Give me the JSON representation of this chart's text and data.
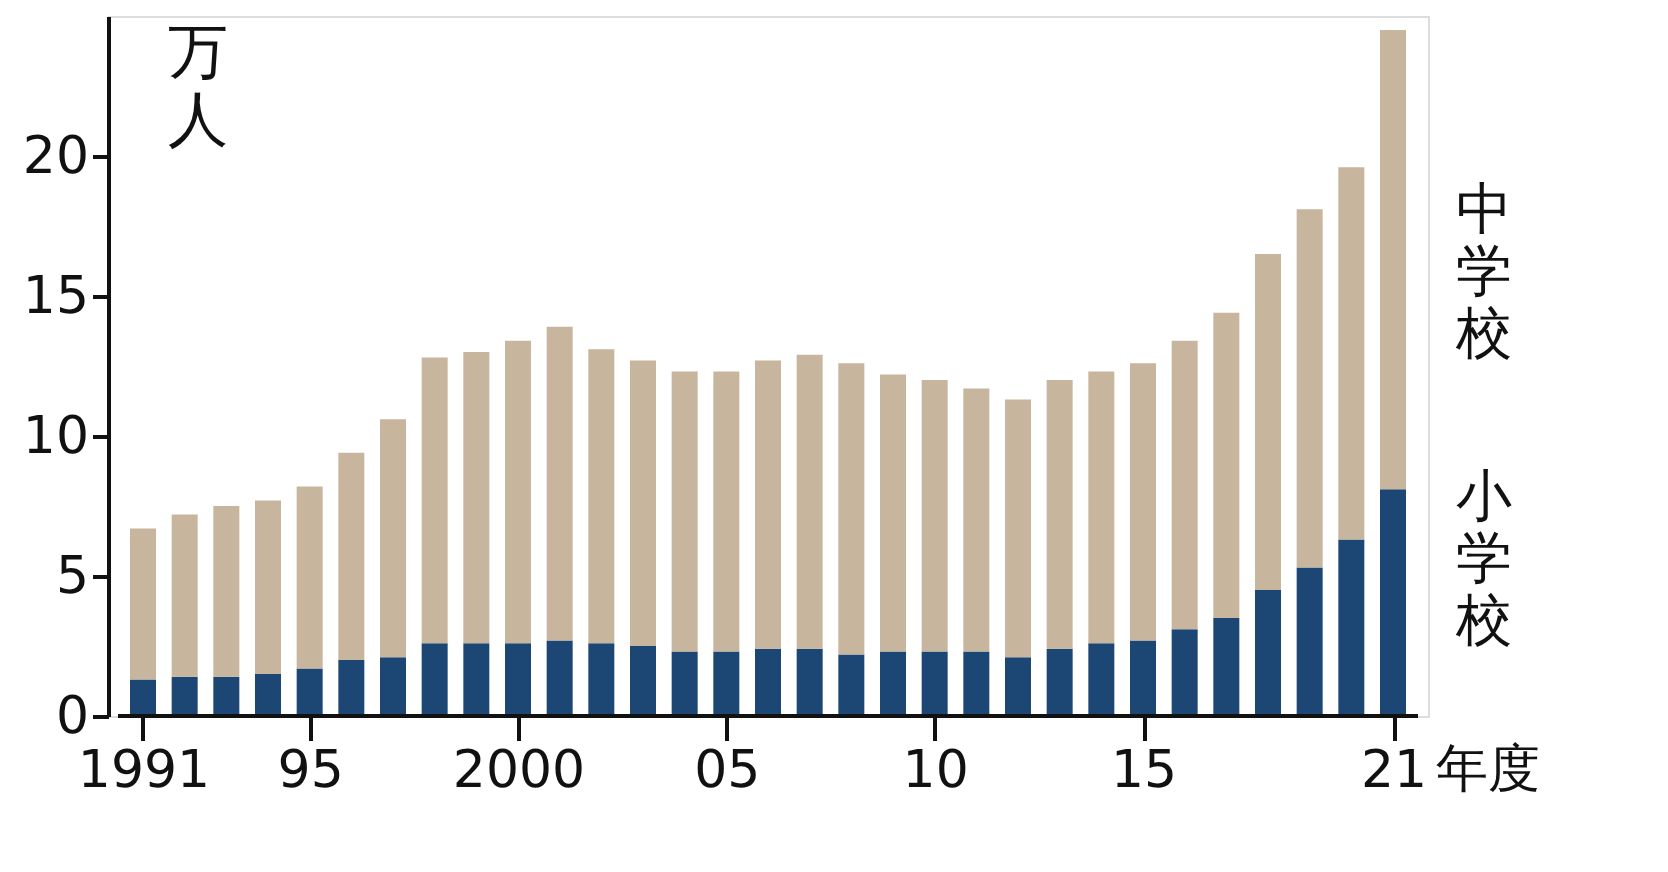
{
  "chart_data": {
    "type": "bar",
    "stacked": true,
    "ylabel": "万人",
    "xlabel": "年度",
    "x": [
      1991,
      1992,
      1993,
      1994,
      1995,
      1996,
      1997,
      1998,
      1999,
      2000,
      2001,
      2002,
      2003,
      2004,
      2005,
      2006,
      2007,
      2008,
      2009,
      2010,
      2011,
      2012,
      2013,
      2014,
      2015,
      2016,
      2017,
      2018,
      2019,
      2020,
      2021
    ],
    "series": [
      {
        "name": "小学校",
        "color": "#1c4775",
        "values": [
          1.3,
          1.4,
          1.4,
          1.5,
          1.7,
          2.0,
          2.1,
          2.6,
          2.6,
          2.6,
          2.7,
          2.6,
          2.5,
          2.3,
          2.3,
          2.4,
          2.4,
          2.2,
          2.3,
          2.3,
          2.3,
          2.1,
          2.4,
          2.6,
          2.7,
          3.1,
          3.5,
          4.5,
          5.3,
          6.3,
          8.1
        ]
      },
      {
        "name": "中学校",
        "color": "#c7b59d",
        "values": [
          5.4,
          5.8,
          6.1,
          6.2,
          6.5,
          7.4,
          8.5,
          10.2,
          10.4,
          10.8,
          11.2,
          10.5,
          10.2,
          10.0,
          10.0,
          10.3,
          10.5,
          10.4,
          9.9,
          9.7,
          9.4,
          9.2,
          9.6,
          9.7,
          9.9,
          10.3,
          10.9,
          12.0,
          12.8,
          13.3,
          16.4
        ]
      }
    ],
    "xlim": [
      1990.4,
      2021.6
    ],
    "xticks": [
      1991,
      {
        "value": 1995,
        "label": "95"
      },
      2000,
      {
        "value": 2005,
        "label": "05"
      },
      {
        "value": 2010,
        "label": "10"
      },
      {
        "value": 2015,
        "label": "15"
      },
      {
        "value": 2021,
        "label": "21"
      }
    ],
    "ylim": [
      0,
      25
    ],
    "yticks": [
      0,
      5,
      10,
      15,
      20
    ],
    "grid": false,
    "legend": "right"
  }
}
